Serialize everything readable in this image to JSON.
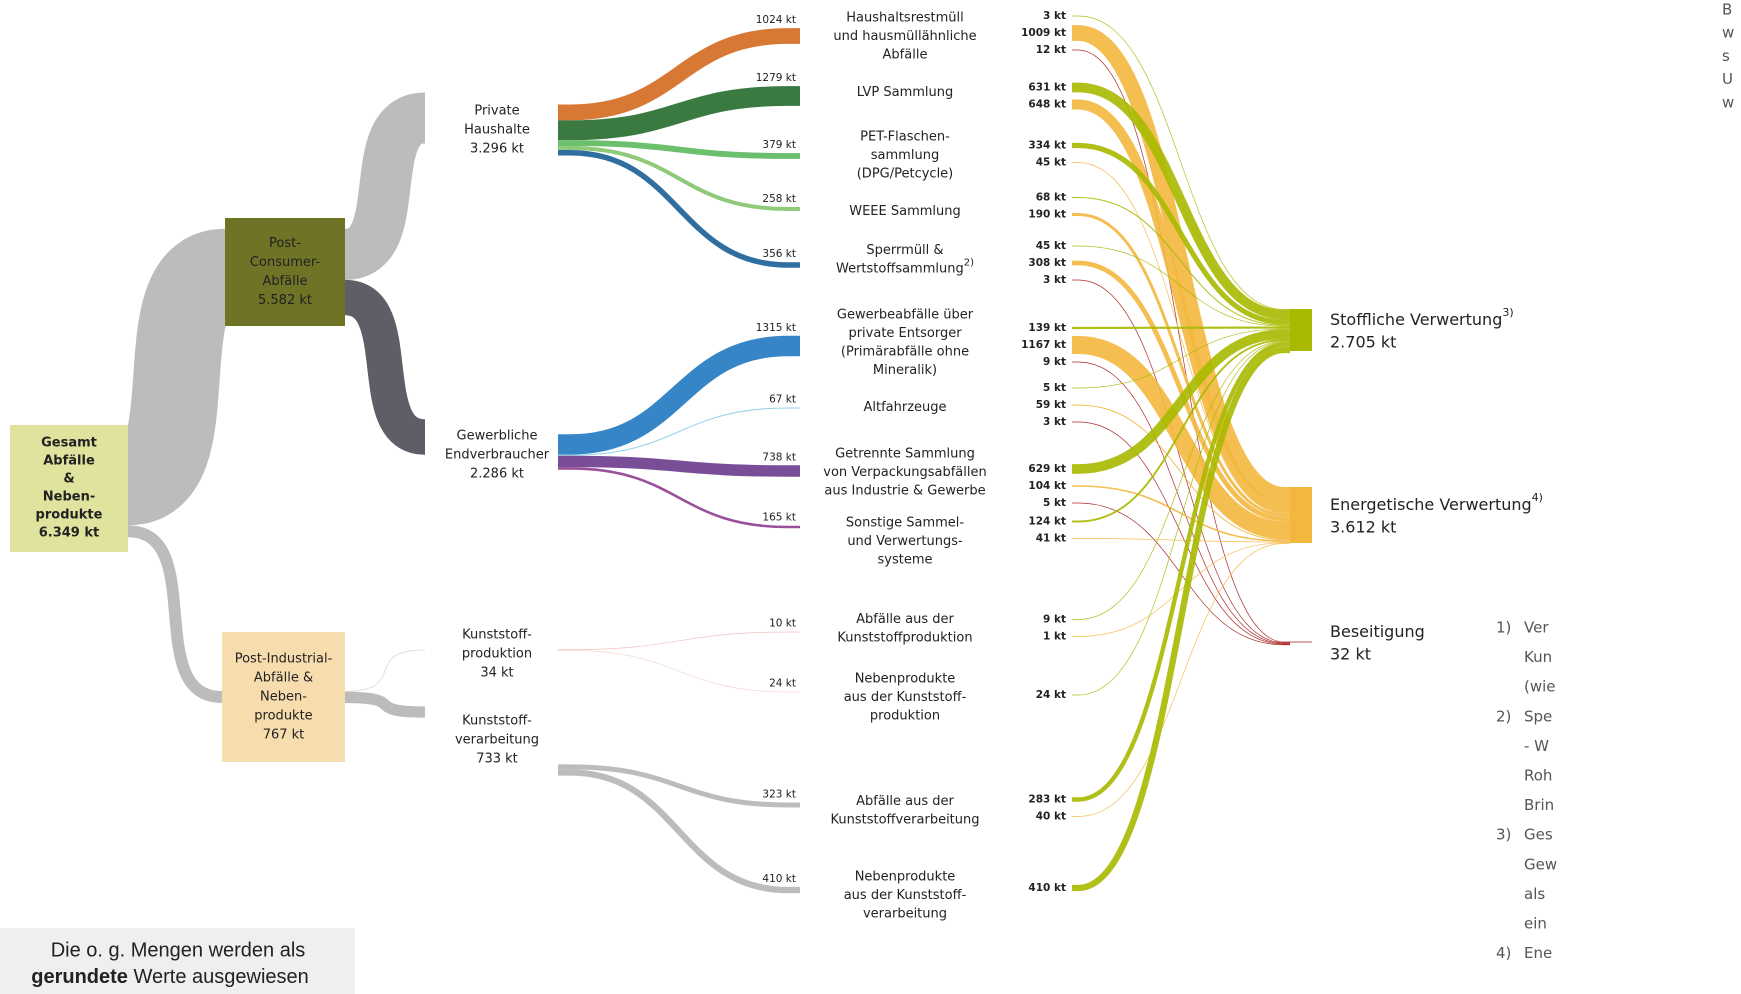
{
  "chart_data": {
    "type": "sankey",
    "root": {
      "lines": [
        "Gesamt",
        "Abfälle",
        "&",
        "Neben-",
        "produkte",
        "6.349 kt"
      ],
      "value": 6349,
      "color": "#dfe39d"
    },
    "groups": [
      {
        "lines": [
          "Post-",
          "Consumer-",
          "Abfälle",
          "5.582 kt"
        ],
        "value": 5582,
        "color": "#6f7326",
        "flow_color": "#b5b5b5",
        "sources": [
          {
            "lines": [
              "Private",
              "Haushalte",
              "3.296 kt"
            ],
            "value": 3296,
            "flow_color": "#b5b5b5",
            "collections": [
              {
                "name": [
                  "Haushaltsrestmüll",
                  "und hausmüllähnliche",
                  "Abfälle"
                ],
                "value": 1024,
                "label": "1024 kt",
                "color": "#d4691f",
                "outputs": [
                  {
                    "value": 3,
                    "label": "3 kt",
                    "color": "#a8b900"
                  },
                  {
                    "value": 1009,
                    "label": "1009 kt",
                    "color": "#f3b73e"
                  },
                  {
                    "value": 12,
                    "label": "12 kt",
                    "color": "#a31515"
                  }
                ]
              },
              {
                "name": [
                  "LVP Sammlung"
                ],
                "value": 1279,
                "label": "1279 kt",
                "color": "#256b2c",
                "outputs": [
                  {
                    "value": 631,
                    "label": "631 kt",
                    "color": "#a8b900"
                  },
                  {
                    "value": 648,
                    "label": "648 kt",
                    "color": "#f3b73e"
                  }
                ]
              },
              {
                "name": [
                  "PET-Flaschen-",
                  "sammlung",
                  "(DPG/Petcycle)"
                ],
                "value": 379,
                "label": "379 kt",
                "color": "#5cb85c",
                "outputs": [
                  {
                    "value": 334,
                    "label": "334 kt",
                    "color": "#a8b900"
                  },
                  {
                    "value": 45,
                    "label": "45 kt",
                    "color": "#f3b73e"
                  }
                ]
              },
              {
                "name": [
                  "WEEE Sammlung"
                ],
                "value": 258,
                "label": "258 kt",
                "color": "#82c46c",
                "outputs": [
                  {
                    "value": 68,
                    "label": "68 kt",
                    "color": "#a8b900"
                  },
                  {
                    "value": 190,
                    "label": "190 kt",
                    "color": "#f3b73e"
                  }
                ]
              },
              {
                "name": [
                  "Sperrmüll &",
                  "Wertstoffsammlung"
                ],
                "sup": "2)",
                "value": 356,
                "label": "356 kt",
                "color": "#1a5e96",
                "outputs": [
                  {
                    "value": 45,
                    "label": "45 kt",
                    "color": "#a8b900"
                  },
                  {
                    "value": 308,
                    "label": "308 kt",
                    "color": "#f3b73e"
                  },
                  {
                    "value": 3,
                    "label": "3 kt",
                    "color": "#a31515"
                  }
                ]
              }
            ]
          },
          {
            "lines": [
              "Gewerbliche",
              "Endverbraucher",
              "2.286 kt"
            ],
            "value": 2286,
            "flow_color": "#4b4c55",
            "collections": [
              {
                "name": [
                  "Gewerbeabfälle über",
                  "private Entsorger",
                  "(Primärabfälle ohne",
                  "Mineralik)"
                ],
                "value": 1315,
                "label": "1315 kt",
                "color": "#1f78c1",
                "outputs": [
                  {
                    "value": 139,
                    "label": "139 kt",
                    "color": "#a8b900"
                  },
                  {
                    "value": 1167,
                    "label": "1167 kt",
                    "color": "#f3b73e"
                  },
                  {
                    "value": 9,
                    "label": "9 kt",
                    "color": "#a31515"
                  }
                ]
              },
              {
                "name": [
                  "Altfahrzeuge"
                ],
                "value": 67,
                "label": "67 kt",
                "color": "#86cde6",
                "outputs": [
                  {
                    "value": 5,
                    "label": "5 kt",
                    "color": "#a8b900"
                  },
                  {
                    "value": 59,
                    "label": "59 kt",
                    "color": "#f3b73e"
                  },
                  {
                    "value": 3,
                    "label": "3 kt",
                    "color": "#a31515"
                  }
                ]
              },
              {
                "name": [
                  "Getrennte Sammlung",
                  "von Verpackungsabfällen",
                  "aus Industrie & Gewerbe"
                ],
                "value": 738,
                "label": "738 kt",
                "color": "#6a3b8c",
                "outputs": [
                  {
                    "value": 629,
                    "label": "629 kt",
                    "color": "#a8b900"
                  },
                  {
                    "value": 104,
                    "label": "104 kt",
                    "color": "#f3b73e"
                  },
                  {
                    "value": 5,
                    "label": "5 kt",
                    "color": "#a31515"
                  }
                ]
              },
              {
                "name": [
                  "Sonstige Sammel-",
                  "und Verwertungs-",
                  "systeme"
                ],
                "value": 165,
                "label": "165 kt",
                "color": "#8e3c8e",
                "outputs": [
                  {
                    "value": 124,
                    "label": "124 kt",
                    "color": "#a8b900"
                  },
                  {
                    "value": 41,
                    "label": "41 kt",
                    "color": "#f3b73e"
                  }
                ]
              }
            ]
          }
        ]
      },
      {
        "lines": [
          "Post-Industrial-",
          "Abfälle &",
          "Neben-",
          "produkte",
          "767 kt"
        ],
        "value": 767,
        "color": "#f7dcae",
        "flow_color": "#b5b5b5",
        "sources": [
          {
            "lines": [
              "Kunststoff-",
              "produktion",
              "34 kt"
            ],
            "value": 34,
            "flow_color": "#d8cfc4",
            "collections": [
              {
                "name": [
                  "Abfälle aus der",
                  "Kunststoffproduktion"
                ],
                "value": 10,
                "label": "10 kt",
                "color": "#f2b8b8",
                "outputs": [
                  {
                    "value": 9,
                    "label": "9 kt",
                    "color": "#a8b900"
                  },
                  {
                    "value": 1,
                    "label": "1 kt",
                    "color": "#f3b73e"
                  }
                ]
              },
              {
                "name": [
                  "Nebenprodukte",
                  "aus der Kunststoff-",
                  "produktion"
                ],
                "value": 24,
                "label": "24 kt",
                "color": "#f2d0d0",
                "outputs": [
                  {
                    "value": 24,
                    "label": "24 kt",
                    "color": "#a8b900"
                  }
                ]
              }
            ]
          },
          {
            "lines": [
              "Kunststoff-",
              "verarbeitung",
              "733 kt"
            ],
            "value": 733,
            "flow_color": "#b5b5b5",
            "collections": [
              {
                "name": [
                  "Abfälle aus der",
                  "Kunststoffverarbeitung"
                ],
                "value": 323,
                "label": "323 kt",
                "color": "#b5b5b5",
                "outputs": [
                  {
                    "value": 283,
                    "label": "283 kt",
                    "color": "#a8b900"
                  },
                  {
                    "value": 40,
                    "label": "40 kt",
                    "color": "#f3b73e"
                  }
                ]
              },
              {
                "name": [
                  "Nebenprodukte",
                  "aus der Kunststoff-",
                  "verarbeitung"
                ],
                "value": 410,
                "label": "410 kt",
                "color": "#b5b5b5",
                "outputs": [
                  {
                    "value": 410,
                    "label": "410 kt",
                    "color": "#a8b900"
                  }
                ]
              }
            ]
          }
        ]
      }
    ],
    "destinations": [
      {
        "name": "Stoffliche Verwertung",
        "sup": "3)",
        "total": "2.705 kt",
        "value": 2705,
        "color": "#a8b900"
      },
      {
        "name": "Energetische Verwertung",
        "sup": "4)",
        "total": "3.612 kt",
        "value": 3612,
        "color": "#f3b73e"
      },
      {
        "name": "Beseitigung",
        "total": "32 kt",
        "value": 32,
        "color": "#a31515"
      }
    ],
    "note": {
      "line1": "Die o. g. Mengen werden als",
      "bold": "gerundete",
      "rest": " Werte ausgewiesen"
    },
    "corner_text": [
      "B",
      "w",
      "s",
      "U",
      "w"
    ],
    "footnotes": [
      {
        "num": "1)",
        "lines": [
          "Ver",
          "Kun",
          "(wie"
        ]
      },
      {
        "num": "2)",
        "lines": [
          "Spe",
          "- W",
          "Roh",
          "Brin"
        ]
      },
      {
        "num": "3)",
        "lines": [
          "Ges",
          "Gew",
          "als",
          "ein"
        ]
      },
      {
        "num": "4)",
        "lines": [
          "Ene"
        ]
      }
    ]
  }
}
